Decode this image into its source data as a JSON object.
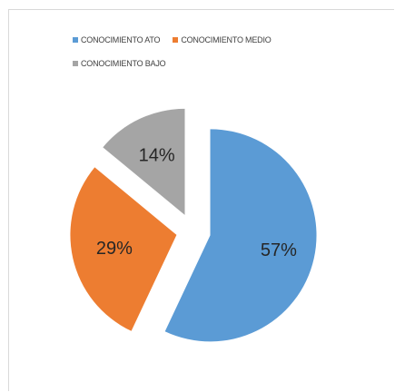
{
  "chart_data": {
    "type": "pie",
    "title": "",
    "categories": [
      "CONOCIMIENTO ATO",
      "CONOCIMIENTO MEDIO",
      "CONOCIMIENTO BAJO"
    ],
    "values": [
      57,
      29,
      14
    ],
    "data_labels": [
      "57%",
      "29%",
      "14%"
    ],
    "colors": [
      "#5b9bd5",
      "#ed7d31",
      "#a5a5a5"
    ],
    "exploded": true,
    "legend_position": "top"
  },
  "legend": [
    {
      "label": "CONOCIMIENTO ATO",
      "color": "#5b9bd5"
    },
    {
      "label": "CONOCIMIENTO MEDIO",
      "color": "#ed7d31"
    },
    {
      "label": "CONOCIMIENTO BAJO",
      "color": "#a5a5a5"
    }
  ]
}
